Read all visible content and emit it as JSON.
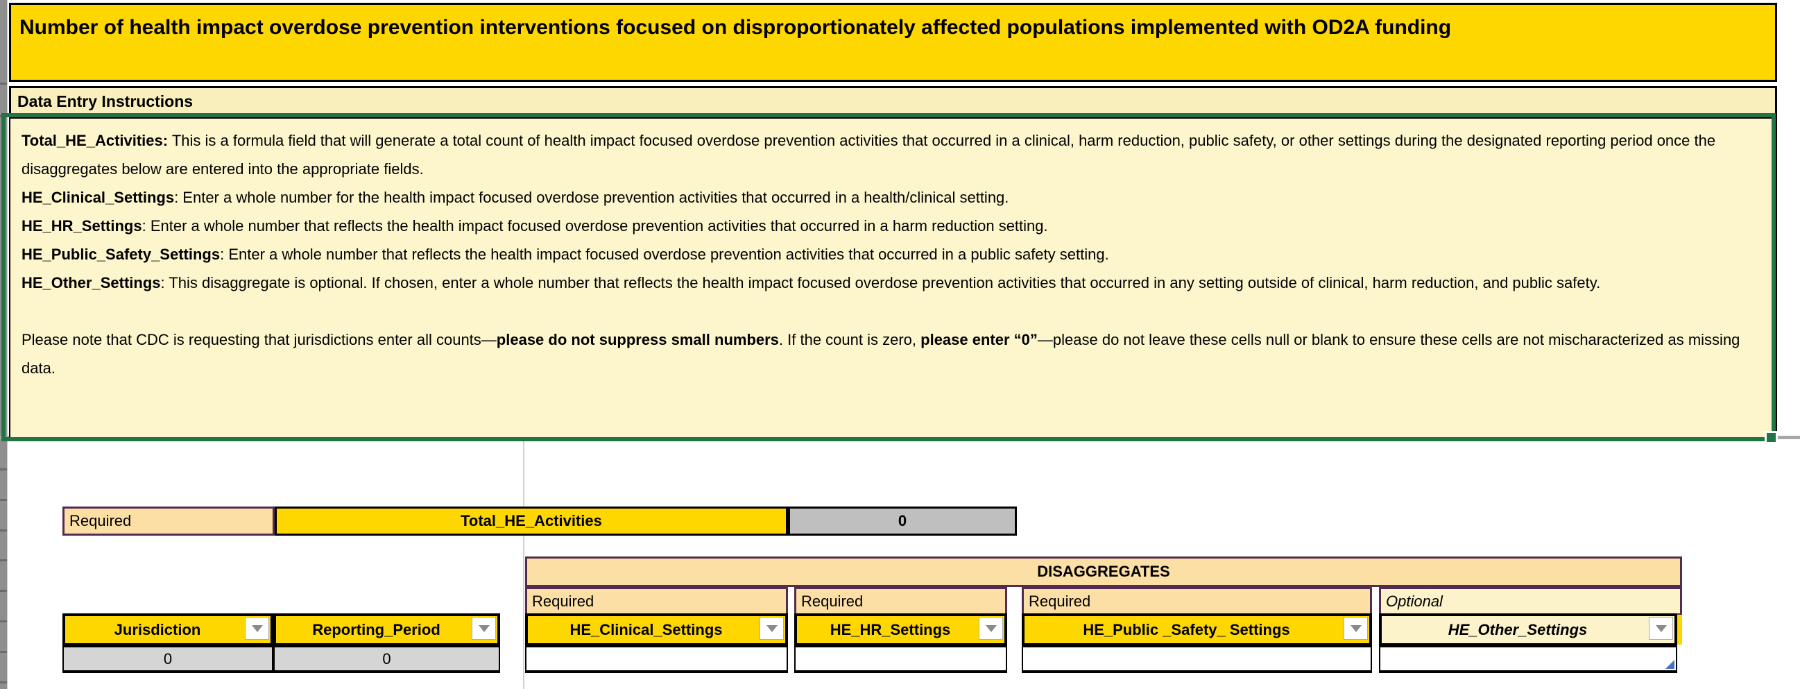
{
  "title": "Number of health impact overdose prevention interventions focused on disproportionately affected populations implemented with OD2A funding",
  "instructions_header": "Data Entry Instructions",
  "instructions": {
    "paragraphs": [
      [
        {
          "t": "Total_HE_Activities:",
          "b": true
        },
        {
          "t": " This is a formula field that will generate a total count of health impact focused overdose prevention activities that occurred in a clinical, harm reduction, public safety, or other settings during the designated reporting period once the disaggregates below are entered into the appropriate fields.",
          "b": false
        }
      ],
      [
        {
          "t": "HE_Clinical_Settings",
          "b": true
        },
        {
          "t": ": Enter a whole number for the health impact focused overdose prevention activities that occurred in a health/clinical setting.",
          "b": false
        }
      ],
      [
        {
          "t": "HE_HR_Settings",
          "b": true
        },
        {
          "t": ": Enter a whole number that reflects the health impact focused overdose prevention activities that occurred in a harm reduction setting.",
          "b": false
        }
      ],
      [
        {
          "t": "HE_Public_Safety_Settings",
          "b": true
        },
        {
          "t": ": Enter a whole number that reflects the health impact focused overdose prevention activities that occurred in a public safety setting.",
          "b": false
        }
      ],
      [
        {
          "t": "HE_Other_Settings",
          "b": true
        },
        {
          "t": ": This disaggregate is optional. If chosen, enter a whole number that reflects the health impact focused overdose prevention activities that occurred in any setting outside of clinical, harm reduction, and public safety.",
          "b": false
        }
      ],
      [],
      [
        {
          "t": "Please note that CDC is requesting that jurisdictions enter all counts—",
          "b": false
        },
        {
          "t": "please do not suppress small numbers",
          "b": true
        },
        {
          "t": ". If the count is zero, ",
          "b": false
        },
        {
          "t": "please enter “0”",
          "b": true
        },
        {
          "t": "—please do not leave these cells null or blank to ensure these cells are not mischaracterized as missing data.",
          "b": false
        }
      ]
    ]
  },
  "total_row": {
    "requirement": "Required",
    "label": "Total_HE_Activities",
    "value": "0"
  },
  "disaggregates_header": "DISAGGREGATES",
  "table": {
    "columns": [
      {
        "label": "Jurisdiction",
        "value": "0"
      },
      {
        "label": "Reporting_Period",
        "value": "0"
      },
      {
        "requirement": "Required",
        "label": "HE_Clinical_Settings",
        "value": ""
      },
      {
        "requirement": "Required",
        "label": "HE_HR_Settings",
        "value": ""
      },
      {
        "requirement": "Required",
        "label": "HE_Public _Safety_ Settings",
        "value": ""
      },
      {
        "requirement": "Optional",
        "label": "HE_Other_Settings",
        "value": ""
      }
    ]
  },
  "colors": {
    "gold": "#ffd700",
    "light_orange": "#fbdfa4",
    "cream": "#fdf5cc",
    "selection_green": "#227447",
    "purple_border": "#542c50",
    "gray_value": "#bfbfbf",
    "table_accent_blue": "#4472c4"
  }
}
